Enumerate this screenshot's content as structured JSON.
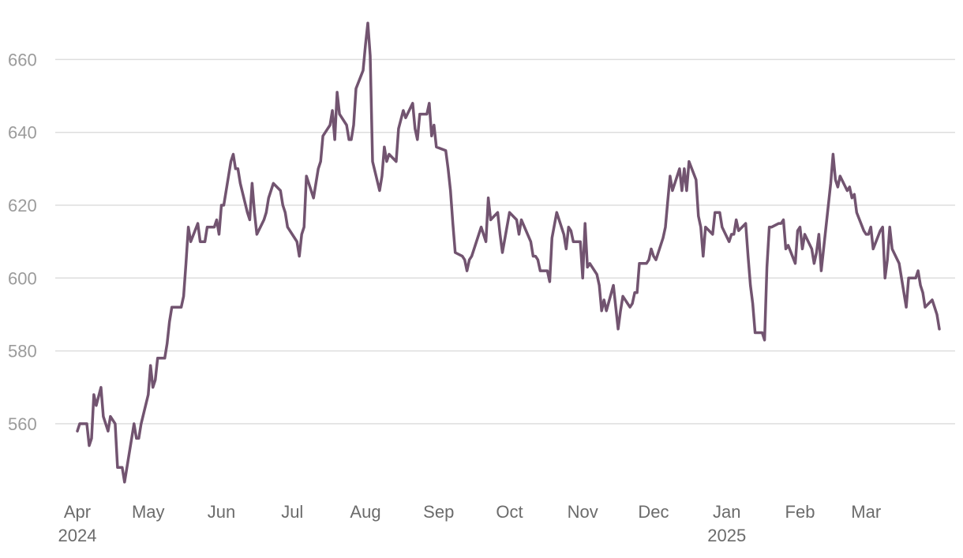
{
  "colors": {
    "line": "#725470",
    "grid": "#dedede",
    "ytick_text": "#9b9b9b",
    "xtick_text": "#6b6b6b",
    "background": "#ffffff"
  },
  "chart_data": {
    "type": "line",
    "title": "",
    "xlabel": "",
    "ylabel": "",
    "grid": true,
    "legend": "none",
    "ylim": [
      542,
      672
    ],
    "xlim": [
      "2024-03-28",
      "2025-03-31"
    ],
    "yticks": [
      560,
      580,
      600,
      620,
      640,
      660
    ],
    "ytick_labels": [
      "560",
      "580",
      "600",
      "620",
      "640",
      "660"
    ],
    "xticks": [
      {
        "date": "2024-04-01",
        "label": "Apr",
        "sublabel": "2024"
      },
      {
        "date": "2024-05-01",
        "label": "May",
        "sublabel": ""
      },
      {
        "date": "2024-06-01",
        "label": "Jun",
        "sublabel": ""
      },
      {
        "date": "2024-07-01",
        "label": "Jul",
        "sublabel": ""
      },
      {
        "date": "2024-08-01",
        "label": "Aug",
        "sublabel": ""
      },
      {
        "date": "2024-09-01",
        "label": "Sep",
        "sublabel": ""
      },
      {
        "date": "2024-10-01",
        "label": "Oct",
        "sublabel": ""
      },
      {
        "date": "2024-11-01",
        "label": "Nov",
        "sublabel": ""
      },
      {
        "date": "2024-12-01",
        "label": "Dec",
        "sublabel": ""
      },
      {
        "date": "2025-01-01",
        "label": "Jan",
        "sublabel": "2025"
      },
      {
        "date": "2025-02-01",
        "label": "Feb",
        "sublabel": ""
      },
      {
        "date": "2025-03-01",
        "label": "Mar",
        "sublabel": ""
      }
    ],
    "series": [
      {
        "points": [
          [
            "2024-04-01",
            558
          ],
          [
            "2024-04-02",
            560
          ],
          [
            "2024-04-05",
            560
          ],
          [
            "2024-04-06",
            554
          ],
          [
            "2024-04-07",
            556
          ],
          [
            "2024-04-08",
            568
          ],
          [
            "2024-04-09",
            565
          ],
          [
            "2024-04-11",
            570
          ],
          [
            "2024-04-12",
            562
          ],
          [
            "2024-04-14",
            558
          ],
          [
            "2024-04-15",
            562
          ],
          [
            "2024-04-17",
            560
          ],
          [
            "2024-04-18",
            548
          ],
          [
            "2024-04-20",
            548
          ],
          [
            "2024-04-21",
            544
          ],
          [
            "2024-04-25",
            560
          ],
          [
            "2024-04-26",
            556
          ],
          [
            "2024-04-27",
            556
          ],
          [
            "2024-04-28",
            560
          ],
          [
            "2024-05-01",
            568
          ],
          [
            "2024-05-02",
            576
          ],
          [
            "2024-05-03",
            570
          ],
          [
            "2024-05-04",
            572
          ],
          [
            "2024-05-05",
            578
          ],
          [
            "2024-05-08",
            578
          ],
          [
            "2024-05-09",
            582
          ],
          [
            "2024-05-10",
            588
          ],
          [
            "2024-05-11",
            592
          ],
          [
            "2024-05-15",
            592
          ],
          [
            "2024-05-16",
            595
          ],
          [
            "2024-05-17",
            604
          ],
          [
            "2024-05-18",
            614
          ],
          [
            "2024-05-19",
            610
          ],
          [
            "2024-05-22",
            615
          ],
          [
            "2024-05-23",
            610
          ],
          [
            "2024-05-25",
            610
          ],
          [
            "2024-05-26",
            614
          ],
          [
            "2024-05-29",
            614
          ],
          [
            "2024-05-30",
            616
          ],
          [
            "2024-05-31",
            612
          ],
          [
            "2024-06-01",
            620
          ],
          [
            "2024-06-02",
            620
          ],
          [
            "2024-06-04",
            628
          ],
          [
            "2024-06-05",
            632
          ],
          [
            "2024-06-06",
            634
          ],
          [
            "2024-06-07",
            630
          ],
          [
            "2024-06-08",
            630
          ],
          [
            "2024-06-09",
            626
          ],
          [
            "2024-06-12",
            618
          ],
          [
            "2024-06-13",
            616
          ],
          [
            "2024-06-14",
            626
          ],
          [
            "2024-06-15",
            618
          ],
          [
            "2024-06-16",
            612
          ],
          [
            "2024-06-19",
            616
          ],
          [
            "2024-06-20",
            618
          ],
          [
            "2024-06-21",
            622
          ],
          [
            "2024-06-23",
            626
          ],
          [
            "2024-06-26",
            624
          ],
          [
            "2024-06-27",
            620
          ],
          [
            "2024-06-28",
            618
          ],
          [
            "2024-06-29",
            614
          ],
          [
            "2024-07-02",
            611
          ],
          [
            "2024-07-03",
            610
          ],
          [
            "2024-07-04",
            606
          ],
          [
            "2024-07-05",
            612
          ],
          [
            "2024-07-06",
            614
          ],
          [
            "2024-07-07",
            628
          ],
          [
            "2024-07-10",
            622
          ],
          [
            "2024-07-11",
            626
          ],
          [
            "2024-07-12",
            630
          ],
          [
            "2024-07-13",
            632
          ],
          [
            "2024-07-14",
            639
          ],
          [
            "2024-07-16",
            641
          ],
          [
            "2024-07-17",
            642
          ],
          [
            "2024-07-18",
            646
          ],
          [
            "2024-07-19",
            638
          ],
          [
            "2024-07-20",
            651
          ],
          [
            "2024-07-21",
            645
          ],
          [
            "2024-07-24",
            642
          ],
          [
            "2024-07-25",
            638
          ],
          [
            "2024-07-26",
            638
          ],
          [
            "2024-07-27",
            642
          ],
          [
            "2024-07-28",
            652
          ],
          [
            "2024-07-31",
            657
          ],
          [
            "2024-08-01",
            664
          ],
          [
            "2024-08-02",
            670
          ],
          [
            "2024-08-03",
            661
          ],
          [
            "2024-08-04",
            632
          ],
          [
            "2024-08-07",
            624
          ],
          [
            "2024-08-08",
            628
          ],
          [
            "2024-08-09",
            636
          ],
          [
            "2024-08-10",
            632
          ],
          [
            "2024-08-11",
            634
          ],
          [
            "2024-08-14",
            632
          ],
          [
            "2024-08-15",
            641
          ],
          [
            "2024-08-17",
            646
          ],
          [
            "2024-08-18",
            644
          ],
          [
            "2024-08-21",
            648
          ],
          [
            "2024-08-22",
            641
          ],
          [
            "2024-08-23",
            638
          ],
          [
            "2024-08-24",
            645
          ],
          [
            "2024-08-27",
            645
          ],
          [
            "2024-08-28",
            648
          ],
          [
            "2024-08-29",
            639
          ],
          [
            "2024-08-30",
            642
          ],
          [
            "2024-08-31",
            636
          ],
          [
            "2024-09-04",
            635
          ],
          [
            "2024-09-05",
            630
          ],
          [
            "2024-09-06",
            624
          ],
          [
            "2024-09-07",
            615
          ],
          [
            "2024-09-08",
            607
          ],
          [
            "2024-09-11",
            606
          ],
          [
            "2024-09-12",
            605
          ],
          [
            "2024-09-13",
            602
          ],
          [
            "2024-09-14",
            605
          ],
          [
            "2024-09-15",
            606
          ],
          [
            "2024-09-19",
            614
          ],
          [
            "2024-09-21",
            610
          ],
          [
            "2024-09-22",
            622
          ],
          [
            "2024-09-23",
            616
          ],
          [
            "2024-09-26",
            618
          ],
          [
            "2024-09-27",
            612
          ],
          [
            "2024-09-28",
            607
          ],
          [
            "2024-10-01",
            618
          ],
          [
            "2024-10-04",
            616
          ],
          [
            "2024-10-05",
            612
          ],
          [
            "2024-10-06",
            616
          ],
          [
            "2024-10-10",
            610
          ],
          [
            "2024-10-11",
            606
          ],
          [
            "2024-10-12",
            606
          ],
          [
            "2024-10-13",
            605
          ],
          [
            "2024-10-14",
            602
          ],
          [
            "2024-10-17",
            602
          ],
          [
            "2024-10-18",
            599
          ],
          [
            "2024-10-19",
            611
          ],
          [
            "2024-10-21",
            618
          ],
          [
            "2024-10-24",
            612
          ],
          [
            "2024-10-25",
            608
          ],
          [
            "2024-10-26",
            614
          ],
          [
            "2024-10-27",
            613
          ],
          [
            "2024-10-28",
            610
          ],
          [
            "2024-10-31",
            610
          ],
          [
            "2024-11-01",
            600
          ],
          [
            "2024-11-02",
            615
          ],
          [
            "2024-11-03",
            603
          ],
          [
            "2024-11-04",
            604
          ],
          [
            "2024-11-07",
            601
          ],
          [
            "2024-11-08",
            598
          ],
          [
            "2024-11-09",
            591
          ],
          [
            "2024-11-10",
            594
          ],
          [
            "2024-11-11",
            591
          ],
          [
            "2024-11-14",
            598
          ],
          [
            "2024-11-15",
            592
          ],
          [
            "2024-11-16",
            586
          ],
          [
            "2024-11-17",
            591
          ],
          [
            "2024-11-18",
            595
          ],
          [
            "2024-11-21",
            592
          ],
          [
            "2024-11-22",
            593
          ],
          [
            "2024-11-23",
            596
          ],
          [
            "2024-11-24",
            596
          ],
          [
            "2024-11-25",
            604
          ],
          [
            "2024-11-28",
            604
          ],
          [
            "2024-11-29",
            605
          ],
          [
            "2024-11-30",
            608
          ],
          [
            "2024-12-01",
            606
          ],
          [
            "2024-12-02",
            605
          ],
          [
            "2024-12-05",
            611
          ],
          [
            "2024-12-06",
            614
          ],
          [
            "2024-12-07",
            621
          ],
          [
            "2024-12-08",
            628
          ],
          [
            "2024-12-09",
            624
          ],
          [
            "2024-12-12",
            630
          ],
          [
            "2024-12-13",
            624
          ],
          [
            "2024-12-14",
            630
          ],
          [
            "2024-12-15",
            624
          ],
          [
            "2024-12-16",
            632
          ],
          [
            "2024-12-19",
            627
          ],
          [
            "2024-12-20",
            617
          ],
          [
            "2024-12-21",
            614
          ],
          [
            "2024-12-22",
            606
          ],
          [
            "2024-12-23",
            614
          ],
          [
            "2024-12-26",
            612
          ],
          [
            "2024-12-27",
            618
          ],
          [
            "2024-12-29",
            618
          ],
          [
            "2024-12-30",
            614
          ],
          [
            "2025-01-02",
            610
          ],
          [
            "2025-01-03",
            612
          ],
          [
            "2025-01-04",
            612
          ],
          [
            "2025-01-05",
            616
          ],
          [
            "2025-01-06",
            613
          ],
          [
            "2025-01-09",
            615
          ],
          [
            "2025-01-10",
            606
          ],
          [
            "2025-01-11",
            598
          ],
          [
            "2025-01-12",
            593
          ],
          [
            "2025-01-13",
            585
          ],
          [
            "2025-01-16",
            585
          ],
          [
            "2025-01-17",
            583
          ],
          [
            "2025-01-18",
            603
          ],
          [
            "2025-01-19",
            614
          ],
          [
            "2025-01-20",
            614
          ],
          [
            "2025-01-23",
            615
          ],
          [
            "2025-01-24",
            615
          ],
          [
            "2025-01-25",
            616
          ],
          [
            "2025-01-26",
            608
          ],
          [
            "2025-01-27",
            609
          ],
          [
            "2025-01-30",
            604
          ],
          [
            "2025-01-31",
            613
          ],
          [
            "2025-02-01",
            614
          ],
          [
            "2025-02-02",
            608
          ],
          [
            "2025-02-03",
            612
          ],
          [
            "2025-02-06",
            608
          ],
          [
            "2025-02-07",
            604
          ],
          [
            "2025-02-08",
            607
          ],
          [
            "2025-02-09",
            612
          ],
          [
            "2025-02-10",
            602
          ],
          [
            "2025-02-13",
            620
          ],
          [
            "2025-02-14",
            626
          ],
          [
            "2025-02-15",
            634
          ],
          [
            "2025-02-16",
            627
          ],
          [
            "2025-02-17",
            625
          ],
          [
            "2025-02-18",
            628
          ],
          [
            "2025-02-21",
            624
          ],
          [
            "2025-02-22",
            625
          ],
          [
            "2025-02-23",
            622
          ],
          [
            "2025-02-24",
            623
          ],
          [
            "2025-02-25",
            618
          ],
          [
            "2025-02-28",
            613
          ],
          [
            "2025-03-01",
            612
          ],
          [
            "2025-03-02",
            612
          ],
          [
            "2025-03-03",
            614
          ],
          [
            "2025-03-04",
            608
          ],
          [
            "2025-03-07",
            613
          ],
          [
            "2025-03-08",
            614
          ],
          [
            "2025-03-09",
            600
          ],
          [
            "2025-03-10",
            605
          ],
          [
            "2025-03-11",
            614
          ],
          [
            "2025-03-12",
            608
          ],
          [
            "2025-03-15",
            604
          ],
          [
            "2025-03-16",
            600
          ],
          [
            "2025-03-17",
            596
          ],
          [
            "2025-03-18",
            592
          ],
          [
            "2025-03-19",
            600
          ],
          [
            "2025-03-22",
            600
          ],
          [
            "2025-03-23",
            602
          ],
          [
            "2025-03-24",
            598
          ],
          [
            "2025-03-25",
            596
          ],
          [
            "2025-03-26",
            592
          ],
          [
            "2025-03-29",
            594
          ],
          [
            "2025-03-30",
            592
          ],
          [
            "2025-03-31",
            590
          ],
          [
            "2025-04-01",
            586
          ]
        ]
      }
    ]
  }
}
